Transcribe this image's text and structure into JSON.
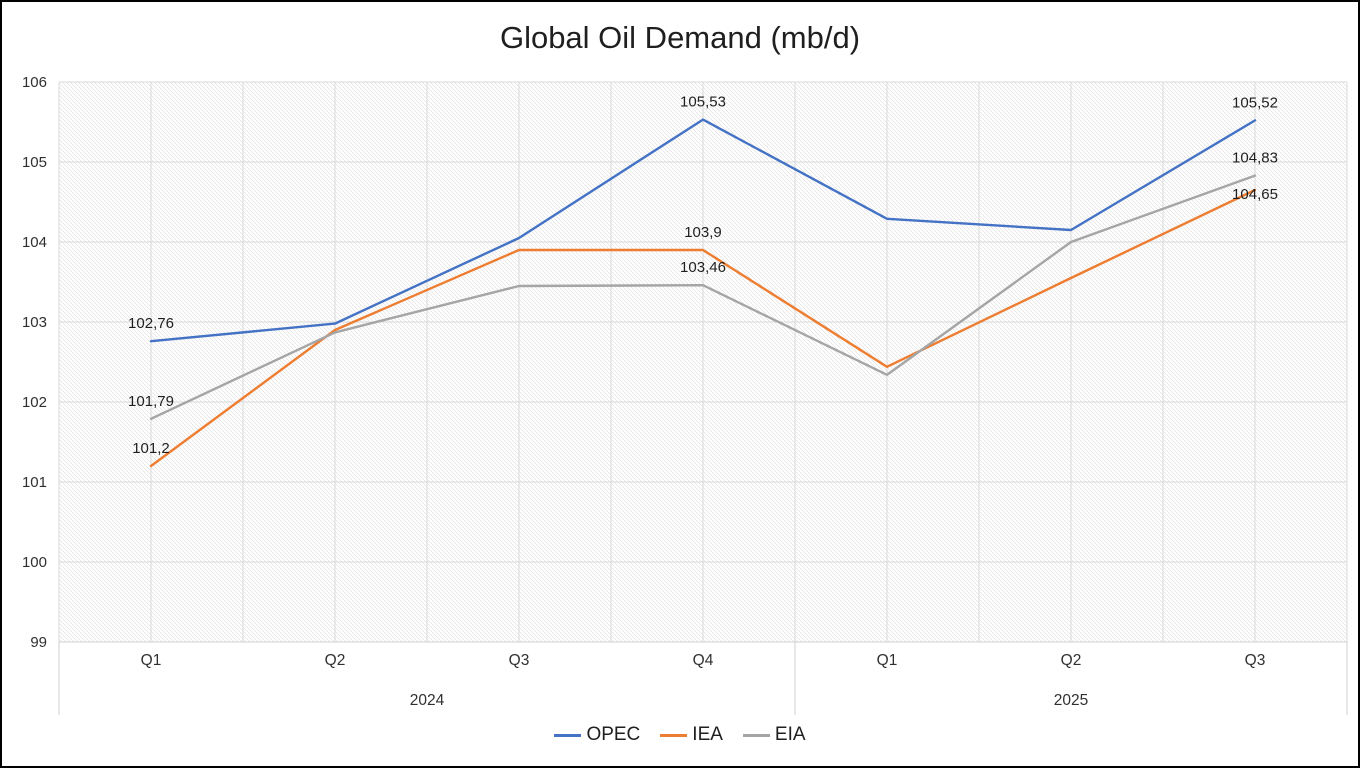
{
  "title": "Global Oil Demand (mb/d)",
  "chart_data": {
    "type": "line",
    "title": "Global Oil Demand (mb/d)",
    "categories": [
      "Q1",
      "Q2",
      "Q3",
      "Q4",
      "Q1",
      "Q2",
      "Q3"
    ],
    "year_groups": [
      {
        "label": "2024",
        "span": 4
      },
      {
        "label": "2025",
        "span": 3
      }
    ],
    "ylim": [
      99,
      106
    ],
    "yticks": [
      99,
      100,
      101,
      102,
      103,
      104,
      105,
      106
    ],
    "grid": true,
    "plot_background": "diagonal-hatch",
    "legend_position": "bottom",
    "series": [
      {
        "name": "OPEC",
        "color": "#4472C4",
        "values": [
          102.76,
          102.98,
          104.05,
          105.53,
          104.29,
          104.15,
          105.52
        ],
        "labels": [
          "102,76",
          null,
          null,
          "105,53",
          null,
          null,
          "105,52"
        ]
      },
      {
        "name": "IEA",
        "color": "#ED7D31",
        "values": [
          101.2,
          102.9,
          103.9,
          103.9,
          102.44,
          103.55,
          104.65
        ],
        "labels": [
          "101,2",
          null,
          null,
          "103,9",
          null,
          null,
          "104,65"
        ]
      },
      {
        "name": "EIA",
        "color": "#A5A5A5",
        "values": [
          101.79,
          102.87,
          103.45,
          103.46,
          102.34,
          104.0,
          104.83
        ],
        "labels": [
          "101,79",
          null,
          null,
          "103,46",
          null,
          null,
          "104,83"
        ]
      }
    ],
    "axis_colors": {
      "gridline": "#d9d9d9",
      "axis_line": "#d0d0d0",
      "tick_text": "#303030",
      "data_label_text": "#1f1f1f"
    }
  }
}
